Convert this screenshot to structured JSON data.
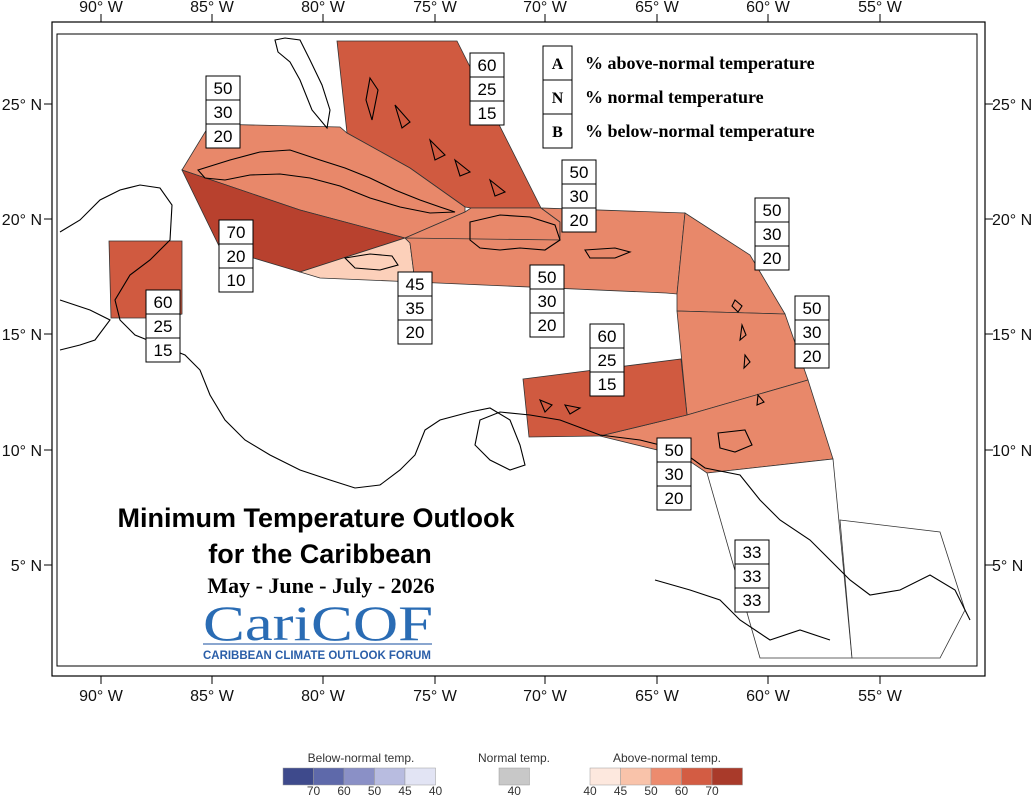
{
  "longitude_ticks": [
    "90° W",
    "85° W",
    "80° W",
    "75° W",
    "70° W",
    "65° W",
    "60° W",
    "55° W"
  ],
  "latitude_ticks": [
    "25° N",
    "20° N",
    "15° N",
    "10° N",
    "5° N"
  ],
  "legend": {
    "items": [
      {
        "key": "A",
        "text": "% above-normal temperature"
      },
      {
        "key": "N",
        "text": "% normal temperature"
      },
      {
        "key": "B",
        "text": "% below-normal temperature"
      }
    ]
  },
  "title_line1": "Minimum Temperature Outlook",
  "title_line2": "for the Caribbean",
  "period": "May - June - July - 2026",
  "logo": {
    "name": "CariCOF",
    "subtitle": "CARIBBEAN CLIMATE OUTLOOK FORUM"
  },
  "regions": [
    {
      "name": "bahamas",
      "above": 60,
      "normal": 25,
      "below": 15,
      "color": "#d05a40"
    },
    {
      "name": "cuba",
      "above": 50,
      "normal": 30,
      "below": 20,
      "color": "#e8886a"
    },
    {
      "name": "western-cuba-cayman",
      "above": 70,
      "normal": 20,
      "below": 10,
      "color": "#b8412e"
    },
    {
      "name": "jamaica",
      "above": 45,
      "normal": 35,
      "below": 20,
      "color": "#fcd0ba"
    },
    {
      "name": "belize",
      "above": 60,
      "normal": 25,
      "below": 15,
      "color": "#d05a40"
    },
    {
      "name": "hispaniola",
      "above": 50,
      "normal": 30,
      "below": 20,
      "color": "#e8886a"
    },
    {
      "name": "puerto-rico-virgin-islands",
      "above": 50,
      "normal": 30,
      "below": 20,
      "color": "#e8886a"
    },
    {
      "name": "leeward-islands",
      "above": 50,
      "normal": 30,
      "below": 20,
      "color": "#e8886a"
    },
    {
      "name": "windward-islands",
      "above": 50,
      "normal": 30,
      "below": 20,
      "color": "#e8886a"
    },
    {
      "name": "abc-islands",
      "above": 60,
      "normal": 25,
      "below": 15,
      "color": "#d05a40"
    },
    {
      "name": "trinidad-tobago",
      "above": 50,
      "normal": 30,
      "below": 20,
      "color": "#e8886a"
    },
    {
      "name": "guianas",
      "above": 33,
      "normal": 33,
      "below": 33,
      "color": "#ffffff"
    }
  ],
  "scale": {
    "below_label": "Below-normal temp.",
    "normal_label": "Normal temp.",
    "above_label": "Above-normal temp.",
    "below_colors": [
      "#3e4a8c",
      "#5e69aa",
      "#8a90c6",
      "#b8bce0",
      "#e2e4f4"
    ],
    "below_values": [
      "70",
      "60",
      "50",
      "45",
      "40"
    ],
    "normal_color": "#c8c8c8",
    "normal_values": [
      "40"
    ],
    "above_colors": [
      "#fde8de",
      "#f9c3aa",
      "#ec8b6e",
      "#d35c43",
      "#a93a2a"
    ],
    "above_values": [
      "40",
      "45",
      "50",
      "60",
      "70"
    ]
  }
}
